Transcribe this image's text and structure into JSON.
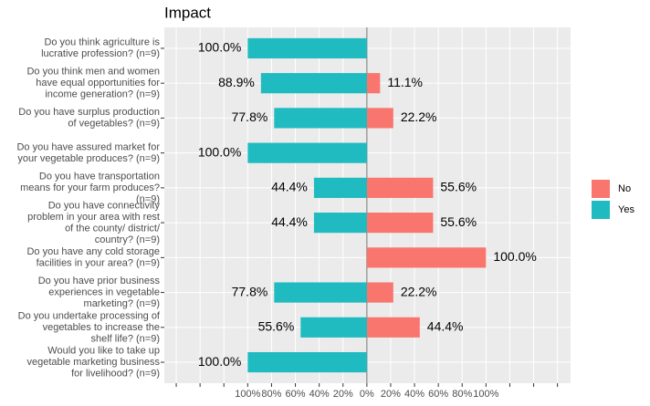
{
  "chart_data": {
    "type": "bar",
    "orientation": "horizontal",
    "title": "Impact",
    "categories": [
      [
        "Do you think agriculture is",
        "lucrative profession? (n=9)"
      ],
      [
        "Do you think men and women",
        "have equal opportunities for",
        "income generation? (n=9)"
      ],
      [
        "Do you have surplus production",
        "of vegetables? (n=9)"
      ],
      [
        "Do you have assured market for",
        "your vegetable produces? (n=9)"
      ],
      [
        "Do you have transportation",
        "means for your farm produces?",
        "(n=9)"
      ],
      [
        "Do you have connectivity",
        "problem in your area with rest",
        "of the county/ district/",
        "country? (n=9)"
      ],
      [
        "Do you have any cold storage",
        "facilities in your area? (n=9)"
      ],
      [
        "Do you have prior business",
        "experiences in vegetable",
        "marketing? (n=9)"
      ],
      [
        "Do you undertake processing of",
        "vegetables to increase the",
        "shelf life? (n=9)"
      ],
      [
        "Would you like to take up",
        "vegetable marketing business",
        "for livelihood? (n=9)"
      ]
    ],
    "series": [
      {
        "name": "No",
        "color": "#F8766D",
        "values": [
          null,
          11.1,
          22.2,
          null,
          55.6,
          55.6,
          100,
          22.2,
          44.4,
          null
        ],
        "value_labels": [
          null,
          "11.1%",
          "22.2%",
          null,
          "55.6%",
          "55.6%",
          "100.0%",
          "22.2%",
          "44.4%",
          null
        ]
      },
      {
        "name": "Yes",
        "color": "#1FBBC0",
        "values": [
          -100,
          -88.9,
          -77.8,
          -100,
          -44.4,
          -44.4,
          null,
          -77.8,
          -55.6,
          -100
        ],
        "value_labels": [
          "100.0%",
          "88.9%",
          "77.8%",
          "100.0%",
          "44.4%",
          "44.4%",
          null,
          "77.8%",
          "55.6%",
          "100.0%"
        ]
      }
    ],
    "xlim": [
      -170,
      171
    ],
    "xticks": [
      {
        "value": -160,
        "label": null
      },
      {
        "value": -140,
        "label": null
      },
      {
        "value": -120,
        "label": null
      },
      {
        "value": -100,
        "label": "100%"
      },
      {
        "value": -80,
        "label": "80%"
      },
      {
        "value": -60,
        "label": "60%"
      },
      {
        "value": -40,
        "label": "40%"
      },
      {
        "value": -20,
        "label": "20%"
      },
      {
        "value": 0,
        "label": "0%"
      },
      {
        "value": 20,
        "label": "20%"
      },
      {
        "value": 40,
        "label": "40%"
      },
      {
        "value": 60,
        "label": "60%"
      },
      {
        "value": 80,
        "label": "80%"
      },
      {
        "value": 100,
        "label": "100%"
      },
      {
        "value": 120,
        "label": null
      },
      {
        "value": 140,
        "label": null
      },
      {
        "value": 160,
        "label": null
      }
    ],
    "grid": true,
    "legend": "right"
  }
}
